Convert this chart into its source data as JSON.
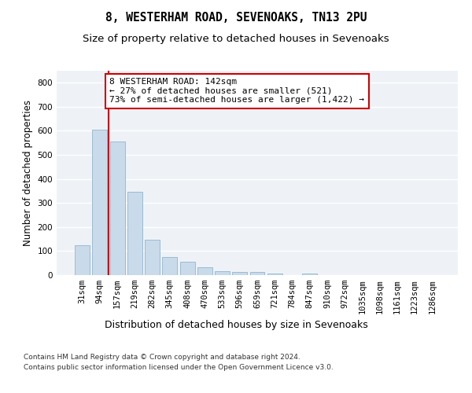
{
  "title1": "8, WESTERHAM ROAD, SEVENOAKS, TN13 2PU",
  "title2": "Size of property relative to detached houses in Sevenoaks",
  "xlabel": "Distribution of detached houses by size in Sevenoaks",
  "ylabel": "Number of detached properties",
  "categories": [
    "31sqm",
    "94sqm",
    "157sqm",
    "219sqm",
    "282sqm",
    "345sqm",
    "408sqm",
    "470sqm",
    "533sqm",
    "596sqm",
    "659sqm",
    "721sqm",
    "784sqm",
    "847sqm",
    "910sqm",
    "972sqm",
    "1035sqm",
    "1098sqm",
    "1161sqm",
    "1223sqm",
    "1286sqm"
  ],
  "values": [
    125,
    605,
    555,
    348,
    148,
    75,
    55,
    32,
    15,
    13,
    13,
    6,
    0,
    8,
    0,
    0,
    0,
    0,
    0,
    0,
    0
  ],
  "bar_color": "#c9daea",
  "bar_edge_color": "#9bbcd4",
  "vline_x_index": 1.5,
  "vline_color": "#cc0000",
  "annotation_text": "8 WESTERHAM ROAD: 142sqm\n← 27% of detached houses are smaller (521)\n73% of semi-detached houses are larger (1,422) →",
  "annotation_box_facecolor": "#ffffff",
  "annotation_box_edgecolor": "#cc0000",
  "footnote1": "Contains HM Land Registry data © Crown copyright and database right 2024.",
  "footnote2": "Contains public sector information licensed under the Open Government Licence v3.0.",
  "ylim": [
    0,
    850
  ],
  "yticks": [
    0,
    100,
    200,
    300,
    400,
    500,
    600,
    700,
    800
  ],
  "bg_color": "#eef2f7",
  "grid_color": "#ffffff",
  "title1_fontsize": 10.5,
  "title2_fontsize": 9.5,
  "xlabel_fontsize": 9,
  "ylabel_fontsize": 8.5,
  "tick_fontsize": 7.5,
  "annot_fontsize": 8
}
